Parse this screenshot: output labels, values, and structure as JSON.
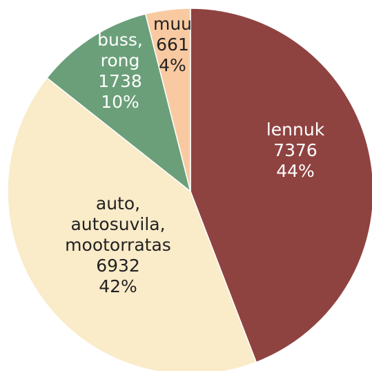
{
  "chart_data": {
    "type": "pie",
    "categories": [
      "lennuk",
      "auto, autosuvila, mootorratas",
      "buss, rong",
      "muu"
    ],
    "values": [
      7376,
      6932,
      1738,
      661
    ],
    "percents": [
      44,
      42,
      10,
      4
    ],
    "percent_labels": [
      "44%",
      "42%",
      "10%",
      "4%"
    ],
    "colors": [
      "#8f4341",
      "#faebc9",
      "#6b9f79",
      "#f9caa2"
    ],
    "label_colors": [
      "#ffffff",
      "#222222",
      "#ffffff",
      "#222222"
    ]
  }
}
